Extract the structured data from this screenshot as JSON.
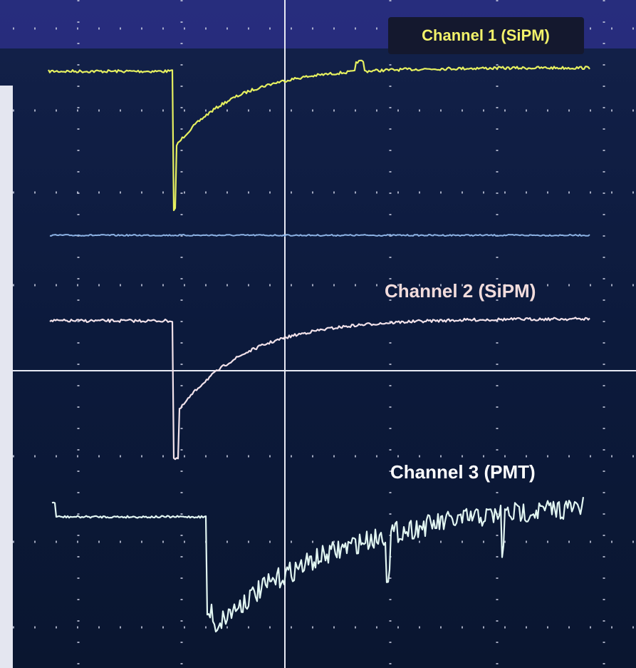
{
  "labels": [
    "Channel 1 (SiPM)",
    "Channel 2 (SiPM)",
    "Channel 3 (PMT)"
  ]
}
